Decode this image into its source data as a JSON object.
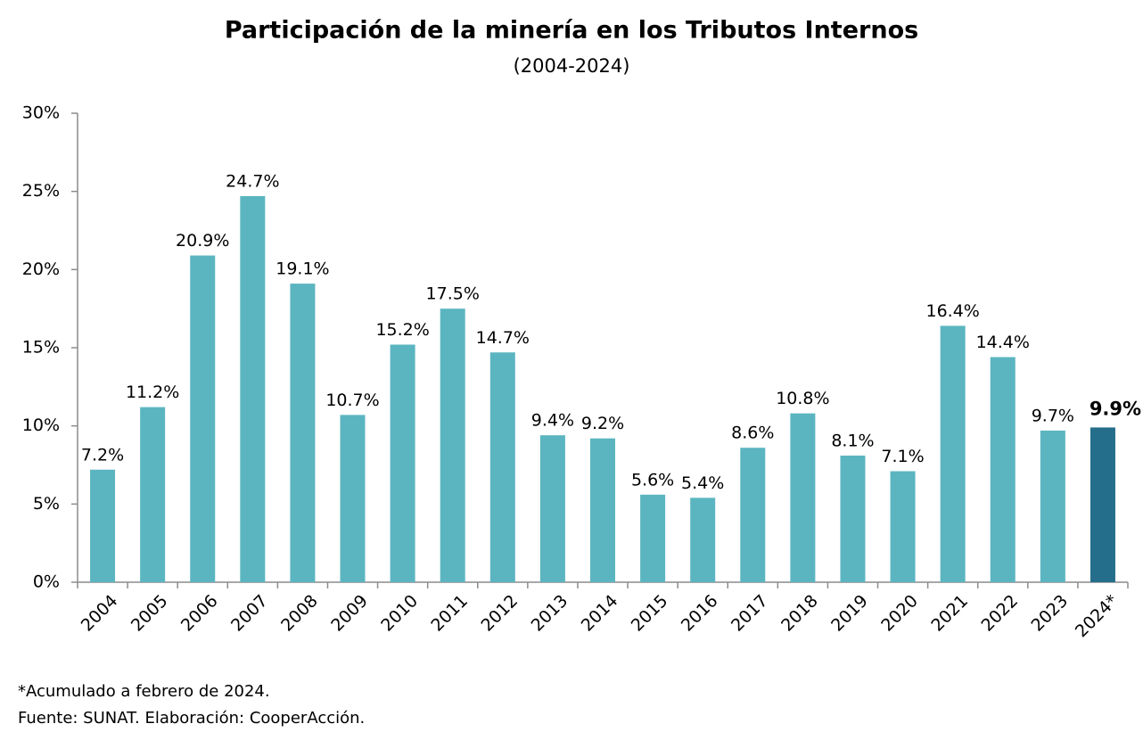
{
  "chart_data": {
    "type": "bar",
    "title": "Participación de la minería en los Tributos Internos",
    "subtitle": "(2004-2024)",
    "categories": [
      "2004",
      "2005",
      "2006",
      "2007",
      "2008",
      "2009",
      "2010",
      "2011",
      "2012",
      "2013",
      "2014",
      "2015",
      "2016",
      "2017",
      "2018",
      "2019",
      "2020",
      "2021",
      "2022",
      "2023",
      "2024*"
    ],
    "values": [
      7.2,
      11.2,
      20.9,
      24.7,
      19.1,
      10.7,
      15.2,
      17.5,
      14.7,
      9.4,
      9.2,
      5.6,
      5.4,
      8.6,
      10.8,
      8.1,
      7.1,
      16.4,
      14.4,
      9.7,
      9.9
    ],
    "value_labels": [
      "7.2%",
      "11.2%",
      "20.9%",
      "24.7%",
      "19.1%",
      "10.7%",
      "15.2%",
      "17.5%",
      "14.7%",
      "9.4%",
      "9.2%",
      "5.6%",
      "5.4%",
      "8.6%",
      "10.8%",
      "8.1%",
      "7.1%",
      "16.4%",
      "14.4%",
      "9.7%",
      "9.9%"
    ],
    "colors": [
      "#5bb5c0",
      "#5bb5c0",
      "#5bb5c0",
      "#5bb5c0",
      "#5bb5c0",
      "#5bb5c0",
      "#5bb5c0",
      "#5bb5c0",
      "#5bb5c0",
      "#5bb5c0",
      "#5bb5c0",
      "#5bb5c0",
      "#5bb5c0",
      "#5bb5c0",
      "#5bb5c0",
      "#5bb5c0",
      "#5bb5c0",
      "#5bb5c0",
      "#5bb5c0",
      "#5bb5c0",
      "#256e8b"
    ],
    "ylim": [
      0,
      30
    ],
    "yticks": [
      {
        "value": 0,
        "label": "0%"
      },
      {
        "value": 5,
        "label": "5%"
      },
      {
        "value": 10,
        "label": "10%"
      },
      {
        "value": 15,
        "label": "15%"
      },
      {
        "value": 20,
        "label": "20%"
      },
      {
        "value": 25,
        "label": "25%"
      },
      {
        "value": 30,
        "label": "30%"
      }
    ],
    "grid": false,
    "notes": [
      "*Acumulado a febrero de 2024.",
      "Fuente: SUNAT. Elaboración: CooperAcción."
    ]
  }
}
